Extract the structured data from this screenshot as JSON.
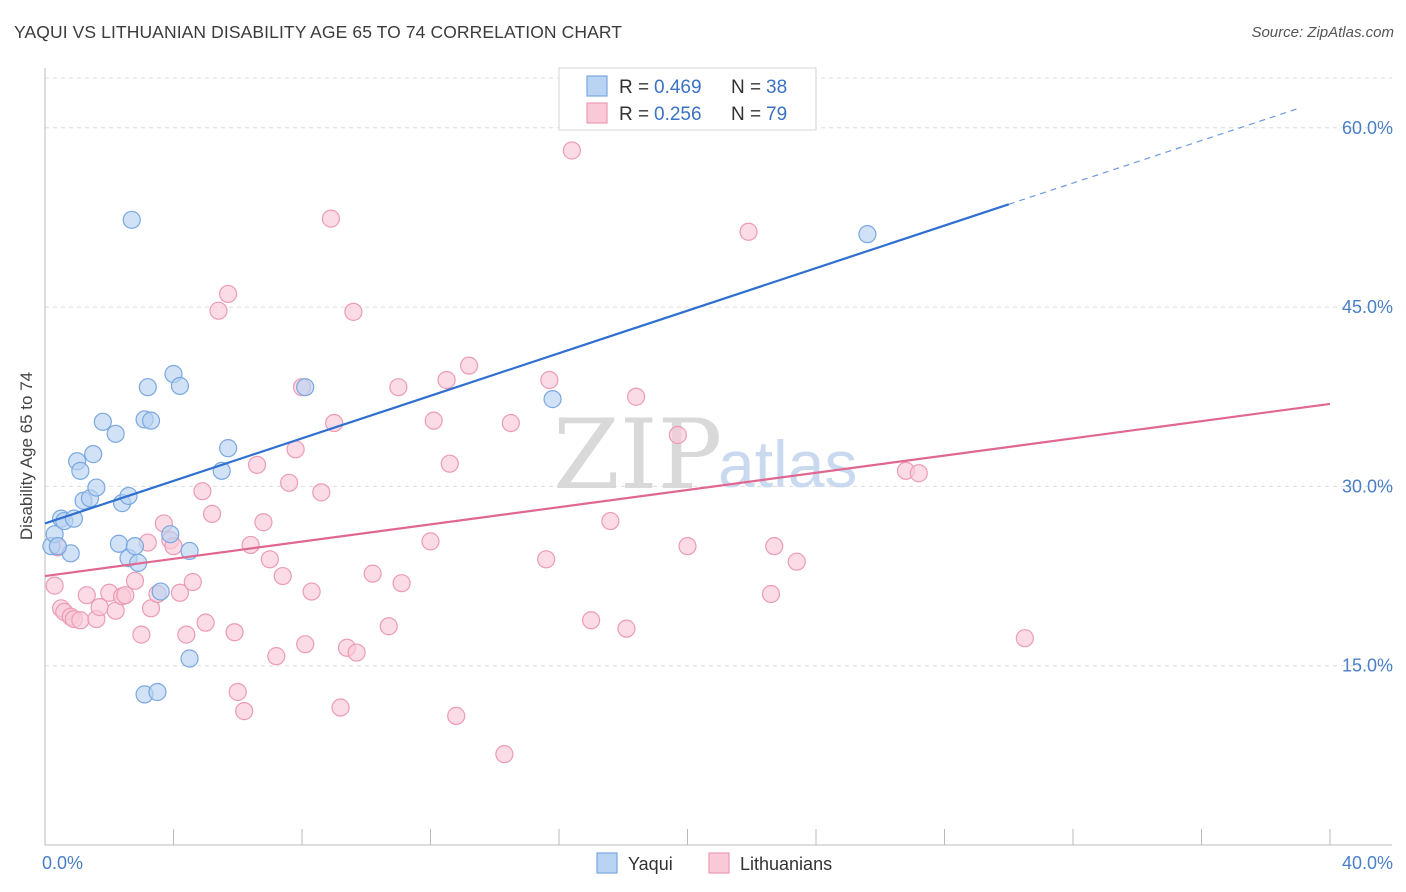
{
  "header": {
    "title": "YAQUI VS LITHUANIAN DISABILITY AGE 65 TO 74 CORRELATION CHART",
    "source": "Source: ZipAtlas.com"
  },
  "watermark": {
    "zip": "ZIP",
    "atlas": "atlas"
  },
  "legend_top": {
    "rows": [
      {
        "r_label": "R = ",
        "r_value": "0.469",
        "n_label": "N = ",
        "n_value": "38"
      },
      {
        "r_label": "R = ",
        "r_value": "0.256",
        "n_label": "N = ",
        "n_value": "79"
      }
    ]
  },
  "legend_bottom": {
    "items": [
      "Yaqui",
      "Lithuanians"
    ]
  },
  "colors": {
    "yaqui_fill": "#b9d3f3",
    "yaqui_stroke": "#7aa8e0",
    "yaqui_line": "#2f6fd0",
    "lith_fill": "#f9c9d8",
    "lith_stroke": "#ec9bb5",
    "lith_line": "#e0678f",
    "grid": "#dddddd",
    "tick_text": "#4a7fc8"
  },
  "chart_data": {
    "type": "scatter",
    "title": "YAQUI VS LITHUANIAN DISABILITY AGE 65 TO 74 CORRELATION CHART",
    "xlabel": "",
    "ylabel": "Disability Age 65 to 74",
    "xlim": [
      0,
      40
    ],
    "ylim": [
      0,
      65
    ],
    "x_tick_labels": [
      "0.0%",
      "40.0%"
    ],
    "y_ticks": [
      15,
      30,
      45,
      60
    ],
    "y_tick_labels": [
      "15.0%",
      "30.0%",
      "45.0%",
      "60.0%"
    ],
    "grid": true,
    "legend": "top-center",
    "series": [
      {
        "name": "Yaqui",
        "r": 0.469,
        "n": 38,
        "trend": {
          "x0": 0,
          "y0": 26.9,
          "x1": 30,
          "y1": 53.6,
          "dashed_to_x": 39.0,
          "dashed_to_y": 61.6
        },
        "points": [
          [
            0.2,
            25.0
          ],
          [
            0.3,
            26.0
          ],
          [
            0.5,
            27.3
          ],
          [
            0.6,
            27.1
          ],
          [
            0.8,
            24.4
          ],
          [
            0.9,
            27.3
          ],
          [
            1.0,
            32.1
          ],
          [
            1.1,
            31.3
          ],
          [
            1.2,
            28.8
          ],
          [
            1.4,
            29.0
          ],
          [
            1.5,
            32.7
          ],
          [
            1.6,
            29.9
          ],
          [
            1.8,
            35.4
          ],
          [
            2.2,
            34.4
          ],
          [
            2.3,
            25.2
          ],
          [
            2.4,
            28.6
          ],
          [
            2.6,
            24.0
          ],
          [
            2.6,
            29.2
          ],
          [
            2.9,
            23.6
          ],
          [
            2.7,
            52.3
          ],
          [
            2.8,
            25.0
          ],
          [
            3.1,
            35.6
          ],
          [
            3.1,
            12.6
          ],
          [
            3.2,
            38.3
          ],
          [
            3.3,
            35.5
          ],
          [
            3.5,
            12.8
          ],
          [
            3.6,
            21.2
          ],
          [
            3.9,
            26.0
          ],
          [
            4.0,
            39.4
          ],
          [
            4.2,
            38.4
          ],
          [
            4.5,
            24.6
          ],
          [
            4.5,
            15.6
          ],
          [
            5.5,
            31.3
          ],
          [
            5.7,
            33.2
          ],
          [
            8.1,
            38.3
          ],
          [
            15.8,
            37.3
          ],
          [
            25.6,
            51.1
          ],
          [
            0.4,
            25.0
          ]
        ]
      },
      {
        "name": "Lithuanians",
        "r": 0.256,
        "n": 79,
        "trend": {
          "x0": 0,
          "y0": 22.5,
          "x1": 40,
          "y1": 36.9
        },
        "points": [
          [
            0.3,
            21.7
          ],
          [
            0.4,
            24.9
          ],
          [
            0.5,
            19.8
          ],
          [
            0.6,
            19.5
          ],
          [
            0.8,
            19.1
          ],
          [
            0.9,
            18.9
          ],
          [
            1.1,
            18.8
          ],
          [
            1.3,
            20.9
          ],
          [
            1.6,
            18.9
          ],
          [
            1.7,
            19.9
          ],
          [
            2.0,
            21.1
          ],
          [
            2.2,
            19.6
          ],
          [
            2.4,
            20.8
          ],
          [
            2.5,
            20.9
          ],
          [
            2.8,
            22.1
          ],
          [
            3.0,
            17.6
          ],
          [
            3.2,
            25.3
          ],
          [
            3.3,
            19.8
          ],
          [
            3.5,
            21.0
          ],
          [
            3.7,
            26.9
          ],
          [
            3.9,
            25.5
          ],
          [
            4.0,
            25.0
          ],
          [
            4.2,
            21.1
          ],
          [
            4.4,
            17.6
          ],
          [
            4.6,
            22.0
          ],
          [
            4.9,
            29.6
          ],
          [
            5.0,
            18.6
          ],
          [
            5.2,
            27.7
          ],
          [
            5.4,
            44.7
          ],
          [
            5.7,
            46.1
          ],
          [
            5.9,
            17.8
          ],
          [
            6.0,
            12.8
          ],
          [
            6.2,
            11.2
          ],
          [
            6.4,
            25.1
          ],
          [
            6.6,
            31.8
          ],
          [
            6.8,
            27.0
          ],
          [
            7.0,
            23.9
          ],
          [
            7.2,
            15.8
          ],
          [
            7.4,
            22.5
          ],
          [
            7.6,
            30.3
          ],
          [
            7.8,
            33.1
          ],
          [
            8.0,
            38.3
          ],
          [
            8.1,
            16.8
          ],
          [
            8.3,
            21.2
          ],
          [
            8.6,
            29.5
          ],
          [
            8.9,
            52.4
          ],
          [
            9.0,
            35.3
          ],
          [
            9.2,
            11.5
          ],
          [
            9.4,
            16.5
          ],
          [
            9.6,
            44.6
          ],
          [
            9.7,
            16.1
          ],
          [
            10.2,
            22.7
          ],
          [
            10.7,
            18.3
          ],
          [
            11.0,
            38.3
          ],
          [
            11.1,
            21.9
          ],
          [
            12.0,
            25.4
          ],
          [
            12.1,
            35.5
          ],
          [
            12.5,
            38.9
          ],
          [
            12.6,
            31.9
          ],
          [
            12.8,
            10.8
          ],
          [
            13.2,
            40.1
          ],
          [
            14.3,
            7.6
          ],
          [
            14.5,
            35.3
          ],
          [
            15.6,
            23.9
          ],
          [
            15.7,
            38.9
          ],
          [
            16.4,
            58.1
          ],
          [
            17.0,
            18.8
          ],
          [
            17.6,
            27.1
          ],
          [
            18.1,
            18.1
          ],
          [
            18.4,
            37.5
          ],
          [
            19.7,
            34.3
          ],
          [
            20.0,
            25.0
          ],
          [
            21.9,
            51.3
          ],
          [
            22.6,
            21.0
          ],
          [
            22.7,
            25.0
          ],
          [
            23.4,
            23.7
          ],
          [
            26.8,
            31.3
          ],
          [
            27.2,
            31.1
          ],
          [
            30.5,
            17.3
          ]
        ]
      }
    ]
  }
}
